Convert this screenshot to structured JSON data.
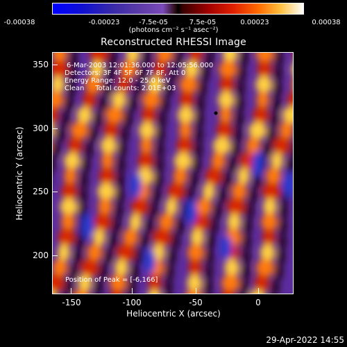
{
  "colorbar": {
    "tick_labels": [
      "-0.00038",
      "-0.00023",
      "-7.5e-05",
      "7.5e-05",
      "0.00023",
      "0.00038"
    ],
    "units_label": "(photons cm⁻² s⁻¹ asec⁻²)"
  },
  "title": "Reconstructed RHESSI Image",
  "annotations": {
    "time": "6-Mar-2003 12:01:36.000 to 12:05:56.000",
    "detectors": "Detectors: 3F 4F 5F 6F 7F 8F, Att 0",
    "energy": "Energy Range: 12.0 - 25.0 keV",
    "clean": "Clean     Total counts: 2.01E+03",
    "peak": "Position of Peak = [-6,166]"
  },
  "axes": {
    "xlabel": "Heliocentric X (arcsec)",
    "ylabel": "Heliocentric Y (arcsec)",
    "xticks": [
      "-150",
      "-100",
      "-50",
      "0"
    ],
    "yticks": [
      "350",
      "300",
      "250",
      "200"
    ]
  },
  "footer_date": "29-Apr-2022 14:55"
}
